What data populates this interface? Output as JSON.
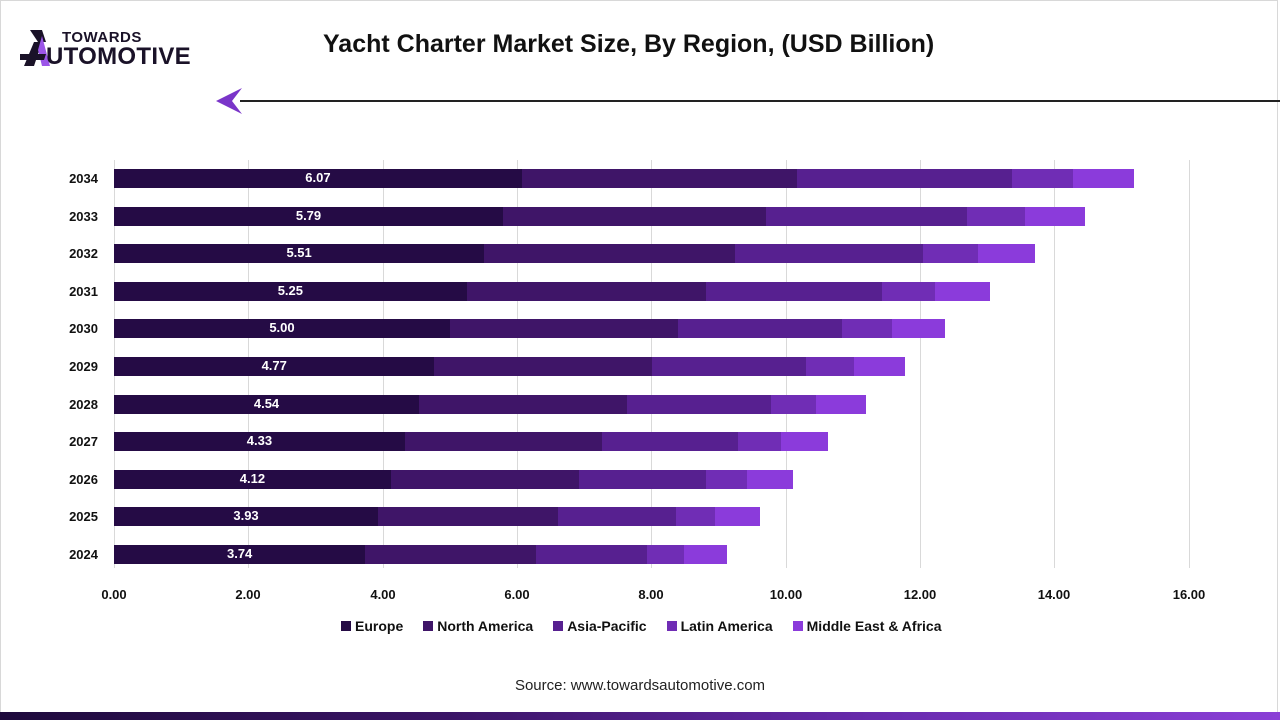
{
  "brand": {
    "logo_top": "TOWARDS",
    "logo_bottom": "UTOMOTIVE",
    "logo_full": "TOWARDS AUTOMOTIVE",
    "accent": "#8b3fd9",
    "dark": "#1a1228"
  },
  "header": {
    "title": "Yacht Charter Market Size, By Region, (USD Billion)"
  },
  "footer": {
    "source": "Source: www.towardsautomotive.com"
  },
  "axis": {
    "ticks": [
      "0.00",
      "2.00",
      "4.00",
      "6.00",
      "8.00",
      "10.00",
      "12.00",
      "14.00",
      "16.00"
    ]
  },
  "legend": [
    {
      "label": "Europe",
      "color": "#250b45"
    },
    {
      "label": "North America",
      "color": "#3f1568"
    },
    {
      "label": "Asia-Pacific",
      "color": "#572090"
    },
    {
      "label": "Latin America",
      "color": "#702db5"
    },
    {
      "label": "Middle East & Africa",
      "color": "#8b3bdb"
    }
  ],
  "rows": [
    {
      "year": "2034",
      "europe_label": "6.07"
    },
    {
      "year": "2033",
      "europe_label": "5.79"
    },
    {
      "year": "2032",
      "europe_label": "5.51"
    },
    {
      "year": "2031",
      "europe_label": "5.25"
    },
    {
      "year": "2030",
      "europe_label": "5.00"
    },
    {
      "year": "2029",
      "europe_label": "4.77"
    },
    {
      "year": "2028",
      "europe_label": "4.54"
    },
    {
      "year": "2027",
      "europe_label": "4.33"
    },
    {
      "year": "2026",
      "europe_label": "4.12"
    },
    {
      "year": "2025",
      "europe_label": "3.93"
    },
    {
      "year": "2024",
      "europe_label": "3.74"
    }
  ],
  "chart_data": {
    "type": "bar",
    "orientation": "horizontal",
    "stacked": true,
    "title": "Yacht Charter Market Size, By Region, (USD Billion)",
    "xlabel": "",
    "ylabel": "",
    "xlim": [
      0,
      16
    ],
    "grid": true,
    "legend_position": "bottom",
    "categories": [
      "2034",
      "2033",
      "2032",
      "2031",
      "2030",
      "2029",
      "2028",
      "2027",
      "2026",
      "2025",
      "2024"
    ],
    "series": [
      {
        "name": "Europe",
        "color": "#250b45",
        "values": [
          6.07,
          5.79,
          5.51,
          5.25,
          5.0,
          4.77,
          4.54,
          4.33,
          4.12,
          3.93,
          3.74
        ]
      },
      {
        "name": "North America",
        "color": "#3f1568",
        "values": [
          4.1,
          3.91,
          3.73,
          3.56,
          3.39,
          3.24,
          3.09,
          2.93,
          2.8,
          2.68,
          2.54
        ]
      },
      {
        "name": "Asia-Pacific",
        "color": "#572090",
        "values": [
          3.2,
          3.0,
          2.8,
          2.62,
          2.44,
          2.29,
          2.15,
          2.03,
          1.89,
          1.75,
          1.65
        ]
      },
      {
        "name": "Latin America",
        "color": "#702db5",
        "values": [
          0.9,
          0.86,
          0.82,
          0.79,
          0.75,
          0.71,
          0.67,
          0.64,
          0.61,
          0.58,
          0.55
        ]
      },
      {
        "name": "Middle East & Africa",
        "color": "#8b3bdb",
        "values": [
          0.91,
          0.89,
          0.85,
          0.82,
          0.79,
          0.76,
          0.74,
          0.7,
          0.69,
          0.67,
          0.64
        ]
      }
    ],
    "data_labels": {
      "series": "Europe",
      "values": [
        "6.07",
        "5.79",
        "5.51",
        "5.25",
        "5.00",
        "4.77",
        "4.54",
        "4.33",
        "4.12",
        "3.93",
        "3.74"
      ]
    },
    "source": "Source: www.towardsautomotive.com"
  }
}
